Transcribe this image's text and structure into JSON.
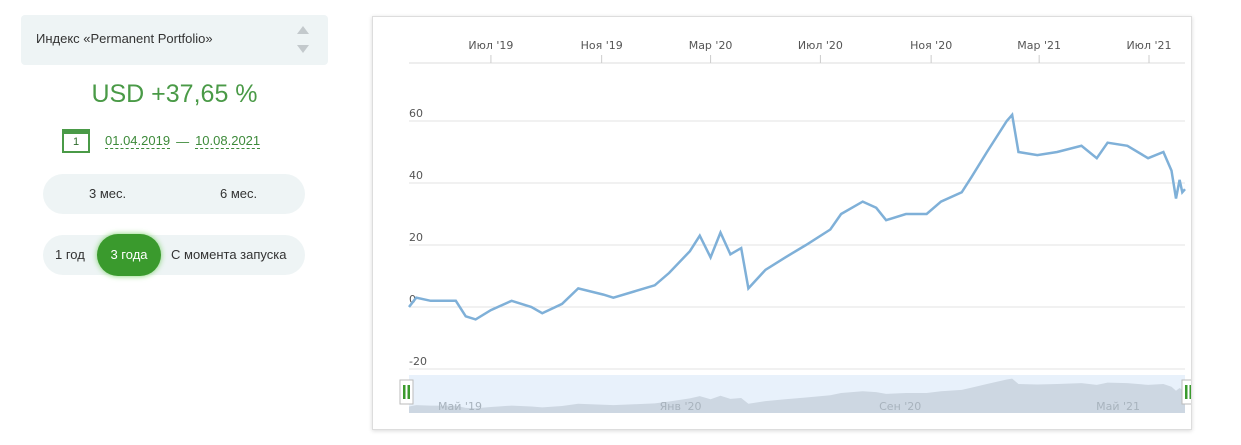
{
  "selector": {
    "label": "Индекс «Permanent Portfolio»"
  },
  "result": "USD +37,65 %",
  "date_range": {
    "calendar_day": "1",
    "from": "01.04.2019",
    "separator": "—",
    "to": "10.08.2021"
  },
  "periods_row1": [
    "3 мес.",
    "6 мес."
  ],
  "periods_row2": [
    "1 год",
    "3 года",
    "С момента запуска"
  ],
  "active_period": "3 года",
  "colors": {
    "accent": "#3a9a2d",
    "result": "#4a9a47",
    "line": "#7fb0d8"
  },
  "chart_data": {
    "type": "line",
    "x_ticks": [
      {
        "date": "2019-07-01",
        "label": "Июл '19"
      },
      {
        "date": "2019-11-01",
        "label": "Ноя '19"
      },
      {
        "date": "2020-03-01",
        "label": "Мар '20"
      },
      {
        "date": "2020-07-01",
        "label": "Июл '20"
      },
      {
        "date": "2020-11-01",
        "label": "Ноя '20"
      },
      {
        "date": "2021-03-01",
        "label": "Мар '21"
      },
      {
        "date": "2021-07-01",
        "label": "Июл '21"
      }
    ],
    "y_ticks": [
      60,
      40,
      20,
      0,
      -20
    ],
    "ylim": [
      -20,
      60
    ],
    "xlim": [
      "2019-04-01",
      "2021-08-10"
    ],
    "grid": true,
    "navigator_labels": [
      "Май '19",
      "Янв '20",
      "Сен '20",
      "Май '21"
    ],
    "points": [
      [
        "2019-04-01",
        0
      ],
      [
        "2019-04-09",
        3
      ],
      [
        "2019-04-25",
        2
      ],
      [
        "2019-05-23",
        2
      ],
      [
        "2019-06-03",
        -3
      ],
      [
        "2019-06-14",
        -4
      ],
      [
        "2019-07-01",
        -1
      ],
      [
        "2019-07-24",
        2
      ],
      [
        "2019-08-15",
        0
      ],
      [
        "2019-08-27",
        -2
      ],
      [
        "2019-09-18",
        1
      ],
      [
        "2019-10-06",
        6
      ],
      [
        "2019-11-03",
        4
      ],
      [
        "2019-11-14",
        3
      ],
      [
        "2019-12-07",
        5
      ],
      [
        "2019-12-30",
        7
      ],
      [
        "2020-01-15",
        11
      ],
      [
        "2020-02-07",
        18
      ],
      [
        "2020-02-18",
        23
      ],
      [
        "2020-03-01",
        16
      ],
      [
        "2020-03-12",
        24
      ],
      [
        "2020-03-23",
        17
      ],
      [
        "2020-04-04",
        19
      ],
      [
        "2020-04-12",
        6
      ],
      [
        "2020-05-01",
        12
      ],
      [
        "2020-05-23",
        16
      ],
      [
        "2020-06-15",
        20
      ],
      [
        "2020-07-12",
        25
      ],
      [
        "2020-07-24",
        30
      ],
      [
        "2020-08-17",
        34
      ],
      [
        "2020-09-01",
        32
      ],
      [
        "2020-09-12",
        28
      ],
      [
        "2020-10-04",
        30
      ],
      [
        "2020-10-27",
        30
      ],
      [
        "2020-11-12",
        34
      ],
      [
        "2020-12-05",
        37
      ],
      [
        "2020-12-16",
        42
      ],
      [
        "2021-01-02",
        50
      ],
      [
        "2021-01-13",
        55
      ],
      [
        "2021-01-24",
        60
      ],
      [
        "2021-01-30",
        62
      ],
      [
        "2021-02-06",
        50
      ],
      [
        "2021-02-27",
        49
      ],
      [
        "2021-03-21",
        50
      ],
      [
        "2021-04-17",
        52
      ],
      [
        "2021-05-04",
        48
      ],
      [
        "2021-05-16",
        53
      ],
      [
        "2021-06-07",
        52
      ],
      [
        "2021-06-30",
        48
      ],
      [
        "2021-07-17",
        50
      ],
      [
        "2021-07-26",
        44
      ],
      [
        "2021-07-31",
        35
      ],
      [
        "2021-08-04",
        41
      ],
      [
        "2021-08-07",
        37
      ],
      [
        "2021-08-10",
        38
      ]
    ]
  }
}
